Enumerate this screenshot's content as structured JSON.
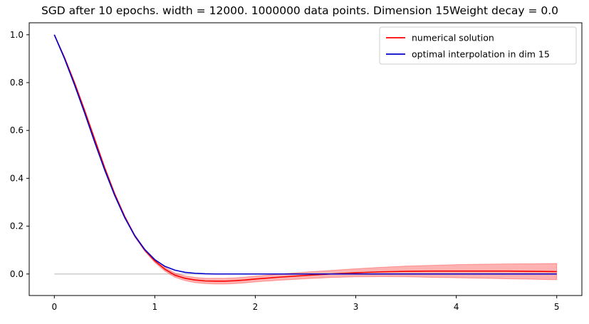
{
  "chart_data": {
    "type": "line",
    "title": "SGD after 10 epochs. width = 12000. 1000000 data points. Dimension 15Weight decay = 0.0",
    "xlabel": "",
    "ylabel": "",
    "xlim": [
      -0.25,
      5.25
    ],
    "ylim": [
      -0.09,
      1.05
    ],
    "xticks": [
      0,
      1,
      2,
      3,
      4,
      5
    ],
    "yticks": [
      0.0,
      0.2,
      0.4,
      0.6,
      0.8,
      1.0
    ],
    "xtick_labels": [
      "0",
      "1",
      "2",
      "3",
      "4",
      "5"
    ],
    "ytick_labels": [
      "0.0",
      "0.2",
      "0.4",
      "0.6",
      "0.8",
      "1.0"
    ],
    "grid": false,
    "legend_position": "top-right",
    "baseline": {
      "y": 0.0,
      "x_range": [
        0,
        5
      ],
      "color": "#cccccc"
    },
    "series": [
      {
        "name": "numerical solution",
        "color": "#ff0000",
        "x": [
          0,
          0.1,
          0.2,
          0.3,
          0.4,
          0.5,
          0.6,
          0.7,
          0.8,
          0.9,
          1.0,
          1.1,
          1.2,
          1.3,
          1.4,
          1.5,
          1.6,
          1.7,
          1.8,
          1.9,
          2.0,
          2.25,
          2.5,
          2.75,
          3.0,
          3.25,
          3.5,
          3.75,
          4.0,
          4.25,
          4.5,
          4.75,
          5.0
        ],
        "y": [
          1.0,
          0.905,
          0.8,
          0.685,
          0.565,
          0.445,
          0.335,
          0.24,
          0.16,
          0.1,
          0.055,
          0.02,
          -0.005,
          -0.018,
          -0.025,
          -0.029,
          -0.03,
          -0.03,
          -0.028,
          -0.025,
          -0.021,
          -0.013,
          -0.006,
          0.0,
          0.005,
          0.009,
          0.011,
          0.012,
          0.012,
          0.012,
          0.012,
          0.011,
          0.01
        ],
        "band_lower": [
          1.0,
          0.9,
          0.795,
          0.68,
          0.56,
          0.44,
          0.33,
          0.235,
          0.155,
          0.095,
          0.048,
          0.012,
          -0.014,
          -0.028,
          -0.036,
          -0.04,
          -0.042,
          -0.042,
          -0.04,
          -0.037,
          -0.033,
          -0.026,
          -0.02,
          -0.015,
          -0.012,
          -0.011,
          -0.012,
          -0.014,
          -0.016,
          -0.018,
          -0.02,
          -0.022,
          -0.024
        ],
        "band_upper": [
          1.0,
          0.91,
          0.805,
          0.69,
          0.57,
          0.45,
          0.34,
          0.245,
          0.165,
          0.105,
          0.062,
          0.028,
          0.004,
          -0.008,
          -0.014,
          -0.018,
          -0.018,
          -0.018,
          -0.016,
          -0.013,
          -0.009,
          0.0,
          0.008,
          0.015,
          0.022,
          0.028,
          0.033,
          0.036,
          0.039,
          0.041,
          0.042,
          0.043,
          0.044
        ]
      },
      {
        "name": "optimal interpolation in dim 15",
        "color": "#0000cc",
        "x": [
          0,
          0.1,
          0.2,
          0.3,
          0.4,
          0.5,
          0.6,
          0.7,
          0.8,
          0.9,
          1.0,
          1.1,
          1.2,
          1.3,
          1.4,
          1.5,
          1.6,
          1.8,
          2.0,
          2.5,
          3.0,
          3.5,
          4.0,
          4.5,
          5.0
        ],
        "y": [
          1.0,
          0.902,
          0.792,
          0.675,
          0.553,
          0.436,
          0.329,
          0.236,
          0.16,
          0.102,
          0.06,
          0.032,
          0.016,
          0.007,
          0.003,
          0.001,
          0.0,
          0.0,
          0.0,
          0.0,
          0.0,
          0.0,
          0.0,
          0.0,
          0.0
        ]
      }
    ]
  }
}
